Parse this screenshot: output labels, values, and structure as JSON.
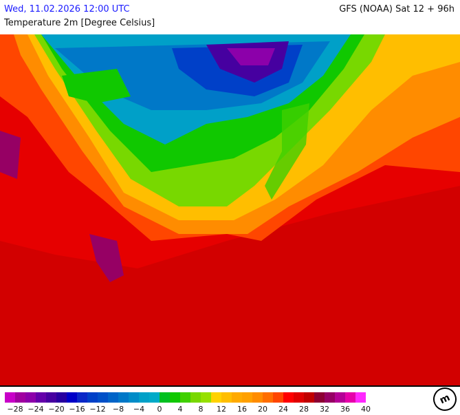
{
  "header": {
    "datetime": "Wed, 11.02.2026 12:00 UTC",
    "model": "GFS (NOAA) Sat 12 + 96h",
    "parameter": "Temperature 2m [Degree Celsius]"
  },
  "legend": {
    "colors": [
      "#c800c8",
      "#a000a0",
      "#8c00aa",
      "#6400aa",
      "#4600a0",
      "#2800a0",
      "#0000c8",
      "#0a28c8",
      "#0040c8",
      "#0050c8",
      "#0064c8",
      "#0078c8",
      "#008cc8",
      "#00a0c8",
      "#00aac8",
      "#00c020",
      "#10c800",
      "#40d000",
      "#78d800",
      "#96e000",
      "#ffd200",
      "#ffbe00",
      "#ffaa00",
      "#ffa000",
      "#ff8c00",
      "#ff6e00",
      "#ff4600",
      "#ff0000",
      "#e00000",
      "#c00000",
      "#8c0032",
      "#960064",
      "#b40096",
      "#e600aa",
      "#ff28ff"
    ],
    "labels": [
      "−28",
      "−24",
      "−20",
      "−16",
      "−12",
      "−8",
      "−4",
      "0",
      "4",
      "8",
      "12",
      "16",
      "20",
      "24",
      "28",
      "32",
      "36",
      "40"
    ]
  },
  "logo": {
    "text": "m",
    "icon": "meteoblue-logo"
  }
}
